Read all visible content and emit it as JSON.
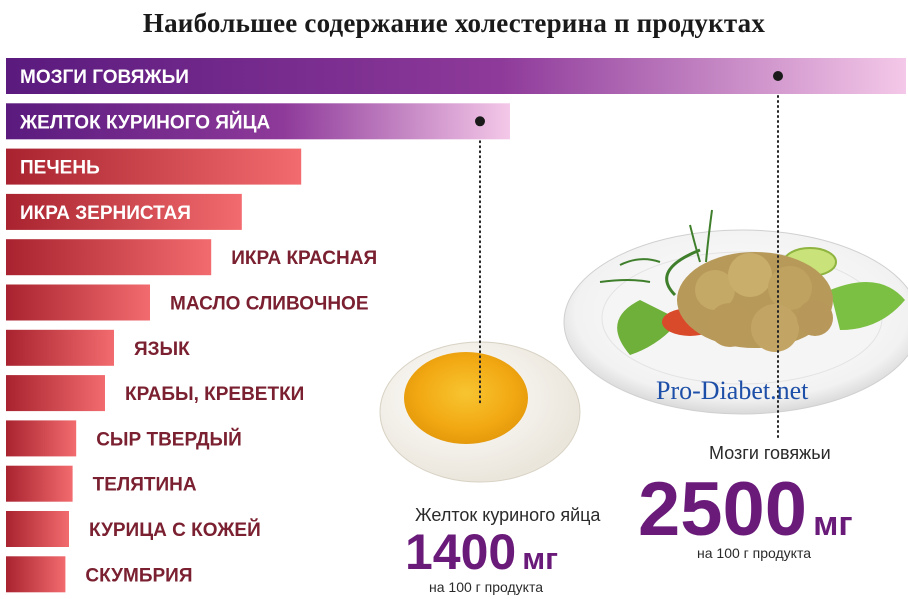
{
  "title": "Наибольшее содержание холестерина п продуктах",
  "watermark": "Pro-Diabet.net",
  "colors": {
    "purple": "#5a1a7e",
    "purple_light": "#f4c8e8",
    "red": "#a8232f",
    "red_light": "#f26b6e",
    "dotted_line": "#222222"
  },
  "callouts": {
    "brain": {
      "name": "Мозги говяжьи",
      "value": "2500",
      "unit": "мг",
      "note": "на 100 г продукта",
      "icon": "beef-brain-dish-icon"
    },
    "yolk": {
      "name": "Желток куриного яйца",
      "value": "1400",
      "unit": "мг",
      "note": "на 100 г продукта",
      "icon": "boiled-egg-half-icon"
    }
  },
  "chart_data": {
    "type": "bar",
    "orientation": "horizontal",
    "title": "Наибольшее содержание холестерина п продуктах",
    "unit": "мг на 100 г продукта",
    "categories": [
      "Мозги говяжьи",
      "Желток куриного яйца",
      "Печень",
      "Икра зернистая",
      "Икра красная",
      "Масло сливочное",
      "Язык",
      "Крабы, креветки",
      "Сыр твердый",
      "Телятина",
      "Курица с кожей",
      "Скумбрия"
    ],
    "values": [
      2500,
      1400,
      820,
      655,
      570,
      400,
      300,
      275,
      195,
      185,
      175,
      165
    ],
    "highlighted": [
      "Мозги говяжьи",
      "Желток куриного яйца"
    ],
    "xlim": [
      0,
      2500
    ],
    "grid": false,
    "legend": "none"
  }
}
